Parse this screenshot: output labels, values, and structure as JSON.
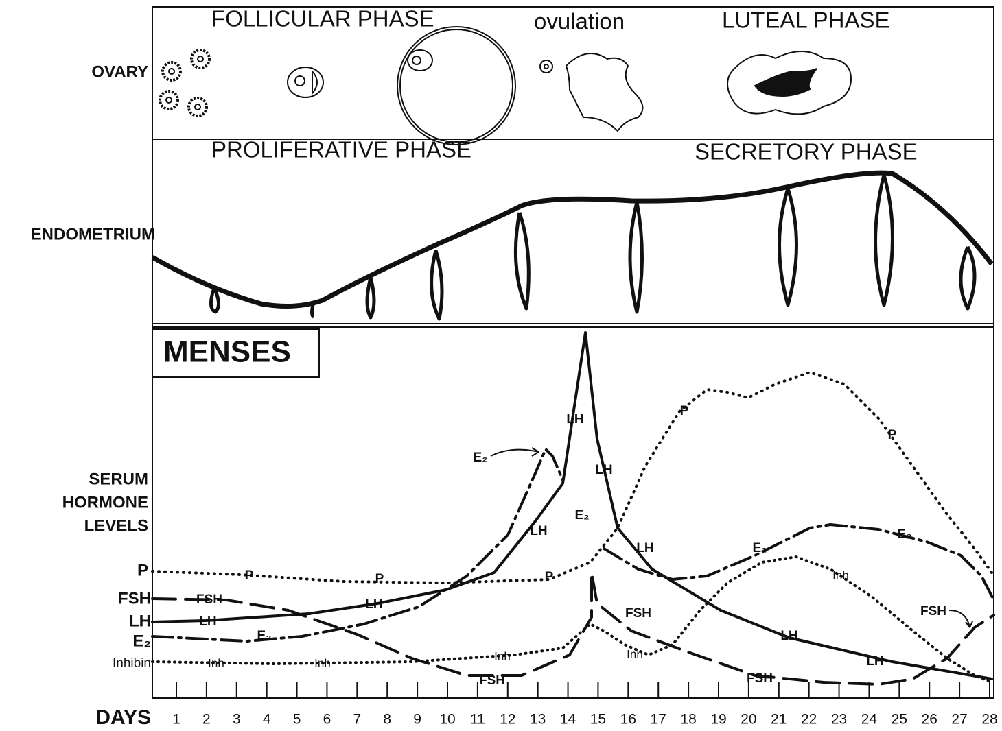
{
  "ovary": {
    "label": "OVARY",
    "phases": [
      "FOLLICULAR PHASE",
      "ovulation",
      "LUTEAL PHASE"
    ]
  },
  "endometrium": {
    "label": "ENDOMETRIUM",
    "phases": [
      "PROLIFERATIVE PHASE",
      "SECRETORY PHASE"
    ]
  },
  "hormones": {
    "menses": "MENSES",
    "label": [
      "SERUM",
      "HORMONE",
      "LEVELS"
    ],
    "legend": [
      "P",
      "FSH",
      "LH",
      "E₂",
      "Inhibin"
    ],
    "curve_labels": [
      "LH",
      "LH",
      "LH",
      "LH",
      "LH",
      "LH",
      "LH",
      "LH",
      "FSH",
      "FSH",
      "FSH",
      "FSH",
      "FSH",
      "E₂",
      "E₂",
      "E₂",
      "E₂",
      "E₂",
      "P",
      "P",
      "P",
      "P",
      "P",
      "Inh",
      "Inh",
      "Inh",
      "Inh",
      "Inh"
    ]
  },
  "days": {
    "label": "DAYS",
    "ticks": [
      1,
      2,
      3,
      4,
      5,
      6,
      7,
      8,
      9,
      10,
      11,
      12,
      13,
      14,
      15,
      16,
      17,
      18,
      19,
      20,
      21,
      22,
      23,
      24,
      25,
      26,
      27,
      28
    ]
  }
}
